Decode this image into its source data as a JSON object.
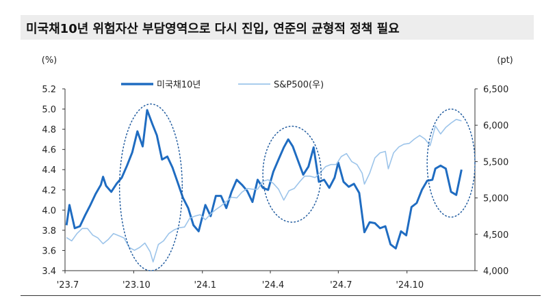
{
  "title": "미국채10년 위험자산 부담영역으로 다시 진입, 연준의 균형적 정책 필요",
  "colors": {
    "treasury": "#1f6cc1",
    "sp500": "#9cc4ea",
    "highlight": "#1f5a9e",
    "axis": "#333333",
    "title_bg": "#ededed"
  },
  "chart_data": {
    "type": "line",
    "left_unit": "(%)",
    "right_unit": "(pt)",
    "x_ticks": [
      "'23.7",
      "'23.10",
      "'24.1",
      "'24.4",
      "'24.7",
      "'24.10"
    ],
    "x_range": [
      "2023-07-01",
      "2024-12-31"
    ],
    "y_left": {
      "range": [
        3.4,
        5.2
      ],
      "ticks": [
        "3.4",
        "3.6",
        "3.8",
        "4.0",
        "4.2",
        "4.4",
        "4.6",
        "4.8",
        "5.0",
        "5.2"
      ]
    },
    "y_right": {
      "range": [
        4000,
        6500
      ],
      "ticks": [
        "4,000",
        "4,500",
        "5,000",
        "5,500",
        "6,000",
        "6,500"
      ]
    },
    "legend": "top-center",
    "series": [
      {
        "name": "미국채10년",
        "axis": "left",
        "points": [
          [
            "2023-07-03",
            3.85
          ],
          [
            "2023-07-07",
            4.05
          ],
          [
            "2023-07-14",
            3.82
          ],
          [
            "2023-07-21",
            3.84
          ],
          [
            "2023-07-28",
            3.95
          ],
          [
            "2023-08-04",
            4.05
          ],
          [
            "2023-08-11",
            4.16
          ],
          [
            "2023-08-18",
            4.25
          ],
          [
            "2023-08-21",
            4.33
          ],
          [
            "2023-08-25",
            4.24
          ],
          [
            "2023-09-01",
            4.18
          ],
          [
            "2023-09-08",
            4.26
          ],
          [
            "2023-09-15",
            4.32
          ],
          [
            "2023-09-22",
            4.44
          ],
          [
            "2023-09-29",
            4.57
          ],
          [
            "2023-10-06",
            4.78
          ],
          [
            "2023-10-13",
            4.63
          ],
          [
            "2023-10-19",
            4.99
          ],
          [
            "2023-10-26",
            4.85
          ],
          [
            "2023-11-01",
            4.74
          ],
          [
            "2023-11-08",
            4.5
          ],
          [
            "2023-11-15",
            4.53
          ],
          [
            "2023-11-22",
            4.42
          ],
          [
            "2023-11-29",
            4.27
          ],
          [
            "2023-12-06",
            4.12
          ],
          [
            "2023-12-13",
            4.02
          ],
          [
            "2023-12-20",
            3.85
          ],
          [
            "2023-12-27",
            3.79
          ],
          [
            "2024-01-05",
            4.05
          ],
          [
            "2024-01-12",
            3.94
          ],
          [
            "2024-01-19",
            4.14
          ],
          [
            "2024-01-26",
            4.14
          ],
          [
            "2024-02-02",
            4.02
          ],
          [
            "2024-02-09",
            4.18
          ],
          [
            "2024-02-16",
            4.3
          ],
          [
            "2024-02-23",
            4.25
          ],
          [
            "2024-03-01",
            4.19
          ],
          [
            "2024-03-08",
            4.08
          ],
          [
            "2024-03-15",
            4.3
          ],
          [
            "2024-03-22",
            4.22
          ],
          [
            "2024-03-29",
            4.2
          ],
          [
            "2024-04-05",
            4.38
          ],
          [
            "2024-04-12",
            4.5
          ],
          [
            "2024-04-19",
            4.62
          ],
          [
            "2024-04-25",
            4.7
          ],
          [
            "2024-05-01",
            4.63
          ],
          [
            "2024-05-08",
            4.49
          ],
          [
            "2024-05-15",
            4.35
          ],
          [
            "2024-05-22",
            4.43
          ],
          [
            "2024-05-29",
            4.62
          ],
          [
            "2024-06-05",
            4.28
          ],
          [
            "2024-06-12",
            4.3
          ],
          [
            "2024-06-19",
            4.22
          ],
          [
            "2024-06-26",
            4.32
          ],
          [
            "2024-07-01",
            4.47
          ],
          [
            "2024-07-08",
            4.28
          ],
          [
            "2024-07-15",
            4.23
          ],
          [
            "2024-07-22",
            4.26
          ],
          [
            "2024-07-29",
            4.17
          ],
          [
            "2024-08-05",
            3.78
          ],
          [
            "2024-08-12",
            3.88
          ],
          [
            "2024-08-19",
            3.87
          ],
          [
            "2024-08-26",
            3.82
          ],
          [
            "2024-09-02",
            3.84
          ],
          [
            "2024-09-09",
            3.66
          ],
          [
            "2024-09-16",
            3.62
          ],
          [
            "2024-09-23",
            3.79
          ],
          [
            "2024-09-30",
            3.75
          ],
          [
            "2024-10-07",
            4.03
          ],
          [
            "2024-10-14",
            4.07
          ],
          [
            "2024-10-21",
            4.2
          ],
          [
            "2024-10-28",
            4.29
          ],
          [
            "2024-11-04",
            4.3
          ],
          [
            "2024-11-08",
            4.41
          ],
          [
            "2024-11-15",
            4.44
          ],
          [
            "2024-11-22",
            4.41
          ],
          [
            "2024-11-29",
            4.18
          ],
          [
            "2024-12-06",
            4.15
          ],
          [
            "2024-12-13",
            4.4
          ]
        ]
      },
      {
        "name": "S&P500(우)",
        "axis": "right",
        "points": [
          [
            "2023-07-03",
            4455
          ],
          [
            "2023-07-10",
            4410
          ],
          [
            "2023-07-17",
            4510
          ],
          [
            "2023-07-24",
            4580
          ],
          [
            "2023-07-31",
            4580
          ],
          [
            "2023-08-07",
            4490
          ],
          [
            "2023-08-14",
            4450
          ],
          [
            "2023-08-21",
            4370
          ],
          [
            "2023-08-28",
            4430
          ],
          [
            "2023-09-04",
            4510
          ],
          [
            "2023-09-11",
            4480
          ],
          [
            "2023-09-18",
            4450
          ],
          [
            "2023-09-25",
            4320
          ],
          [
            "2023-10-02",
            4280
          ],
          [
            "2023-10-09",
            4320
          ],
          [
            "2023-10-16",
            4380
          ],
          [
            "2023-10-23",
            4260
          ],
          [
            "2023-10-27",
            4120
          ],
          [
            "2023-11-03",
            4360
          ],
          [
            "2023-11-10",
            4410
          ],
          [
            "2023-11-17",
            4510
          ],
          [
            "2023-11-24",
            4560
          ],
          [
            "2023-12-01",
            4590
          ],
          [
            "2023-12-08",
            4600
          ],
          [
            "2023-12-15",
            4720
          ],
          [
            "2023-12-22",
            4750
          ],
          [
            "2023-12-29",
            4770
          ],
          [
            "2024-01-05",
            4700
          ],
          [
            "2024-01-12",
            4780
          ],
          [
            "2024-01-19",
            4840
          ],
          [
            "2024-01-26",
            4890
          ],
          [
            "2024-02-02",
            4950
          ],
          [
            "2024-02-09",
            5010
          ],
          [
            "2024-02-16",
            5000
          ],
          [
            "2024-02-23",
            5080
          ],
          [
            "2024-03-01",
            5130
          ],
          [
            "2024-03-08",
            5120
          ],
          [
            "2024-03-15",
            5120
          ],
          [
            "2024-03-22",
            5230
          ],
          [
            "2024-03-29",
            5250
          ],
          [
            "2024-04-05",
            5200
          ],
          [
            "2024-04-12",
            5120
          ],
          [
            "2024-04-19",
            4970
          ],
          [
            "2024-04-26",
            5100
          ],
          [
            "2024-05-03",
            5130
          ],
          [
            "2024-05-10",
            5220
          ],
          [
            "2024-05-17",
            5300
          ],
          [
            "2024-05-24",
            5300
          ],
          [
            "2024-05-31",
            5280
          ],
          [
            "2024-06-07",
            5350
          ],
          [
            "2024-06-14",
            5430
          ],
          [
            "2024-06-21",
            5460
          ],
          [
            "2024-06-28",
            5460
          ],
          [
            "2024-07-05",
            5570
          ],
          [
            "2024-07-12",
            5610
          ],
          [
            "2024-07-19",
            5500
          ],
          [
            "2024-07-26",
            5460
          ],
          [
            "2024-08-02",
            5340
          ],
          [
            "2024-08-05",
            5190
          ],
          [
            "2024-08-12",
            5340
          ],
          [
            "2024-08-19",
            5550
          ],
          [
            "2024-08-26",
            5620
          ],
          [
            "2024-09-02",
            5640
          ],
          [
            "2024-09-06",
            5400
          ],
          [
            "2024-09-13",
            5620
          ],
          [
            "2024-09-20",
            5700
          ],
          [
            "2024-09-27",
            5740
          ],
          [
            "2024-10-04",
            5750
          ],
          [
            "2024-10-11",
            5810
          ],
          [
            "2024-10-18",
            5860
          ],
          [
            "2024-10-25",
            5810
          ],
          [
            "2024-11-01",
            5720
          ],
          [
            "2024-11-08",
            5990
          ],
          [
            "2024-11-15",
            5880
          ],
          [
            "2024-11-22",
            5970
          ],
          [
            "2024-11-29",
            6030
          ],
          [
            "2024-12-06",
            6080
          ],
          [
            "2024-12-13",
            6060
          ]
        ]
      }
    ],
    "highlight_ellipses": [
      {
        "from": "2023-09-12",
        "to": "2023-12-05",
        "y_low": 3.4,
        "y_high": 5.05
      },
      {
        "from": "2024-03-22",
        "to": "2024-06-08",
        "y_low": 3.88,
        "y_high": 4.83
      },
      {
        "from": "2024-10-28",
        "to": "2024-12-31",
        "y_low": 3.93,
        "y_high": 5.0
      }
    ]
  }
}
